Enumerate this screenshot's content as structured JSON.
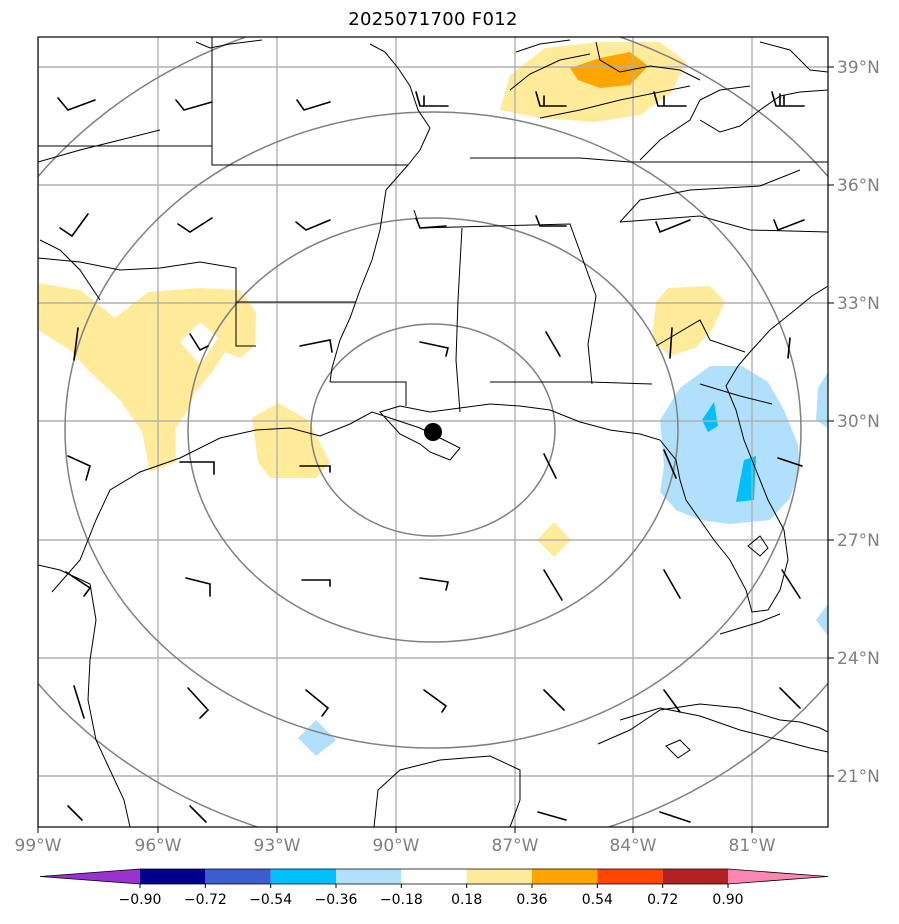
{
  "title": "2025071700 F012",
  "map": {
    "lat_labels": [
      "39°N",
      "36°N",
      "33°N",
      "30°N",
      "27°N",
      "24°N",
      "21°N"
    ],
    "lon_labels": [
      "99°W",
      "96°W",
      "93°W",
      "90°W",
      "87°W",
      "84°W",
      "81°W"
    ],
    "center_marker": "storm-center",
    "colors": {
      "positive_1": "#ffeb99",
      "positive_2": "#ffa500",
      "negative_1": "#b0e0fc",
      "negative_2": "#00bfff",
      "gridline": "#b0b0b0",
      "range_ring": "#808080"
    }
  },
  "colorbar": {
    "ticks": [
      "−0.90",
      "−0.72",
      "−0.54",
      "−0.36",
      "−0.18",
      "0.18",
      "0.36",
      "0.54",
      "0.72",
      "0.90"
    ],
    "colors": [
      "#9a32cd",
      "#00008b",
      "#3b5fd0",
      "#00bfff",
      "#b0e0fc",
      "#ffffff",
      "#ffeb99",
      "#ffa500",
      "#ff4500",
      "#b22222",
      "#ff85b3"
    ]
  }
}
